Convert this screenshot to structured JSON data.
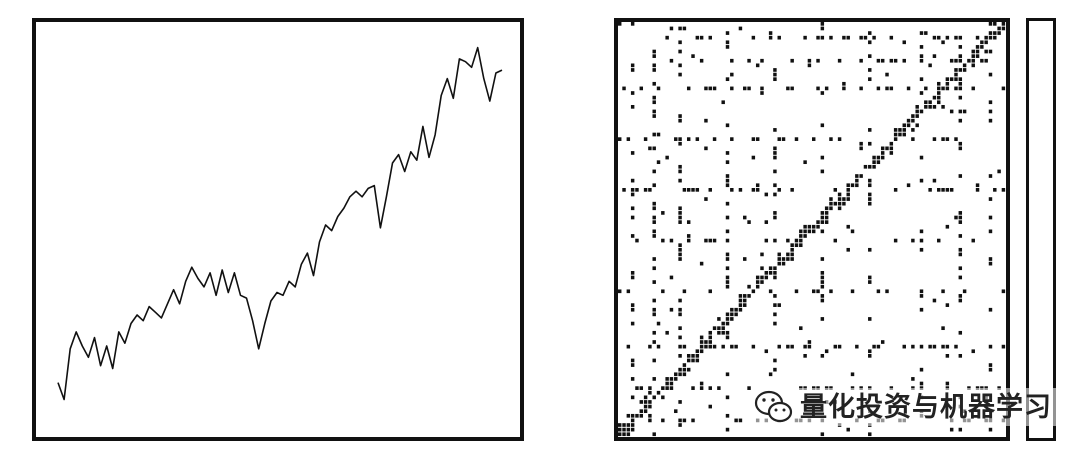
{
  "chart_data": [
    {
      "type": "line",
      "title": "",
      "xlabel": "",
      "ylabel": "",
      "grid": false,
      "series": [
        {
          "values": [
            0.24,
            0.18,
            0.36,
            0.42,
            0.37,
            0.33,
            0.4,
            0.3,
            0.37,
            0.29,
            0.42,
            0.38,
            0.45,
            0.48,
            0.46,
            0.51,
            0.49,
            0.47,
            0.52,
            0.57,
            0.52,
            0.6,
            0.65,
            0.61,
            0.58,
            0.63,
            0.55,
            0.64,
            0.56,
            0.63,
            0.55,
            0.54,
            0.46,
            0.36,
            0.45,
            0.53,
            0.56,
            0.55,
            0.6,
            0.58,
            0.66,
            0.7,
            0.62,
            0.74,
            0.8,
            0.78,
            0.83,
            0.86,
            0.9,
            0.92,
            0.9,
            0.93,
            0.94,
            0.79,
            0.9,
            1.02,
            1.05,
            0.99,
            1.06,
            1.03,
            1.15,
            1.04,
            1.12,
            1.26,
            1.32,
            1.25,
            1.39,
            1.38,
            1.36,
            1.43,
            1.32,
            1.24,
            1.34,
            1.35
          ]
        }
      ],
      "ylim": [
        0.1,
        1.45
      ]
    },
    {
      "type": "heatmap",
      "title": "",
      "xlabel": "",
      "ylabel": "",
      "description_colors": {
        "ink": "#111111",
        "paper": "#ffffff"
      }
    }
  ],
  "watermark": {
    "text": "量化投资与机器学习",
    "icon": "wechat-icon"
  }
}
